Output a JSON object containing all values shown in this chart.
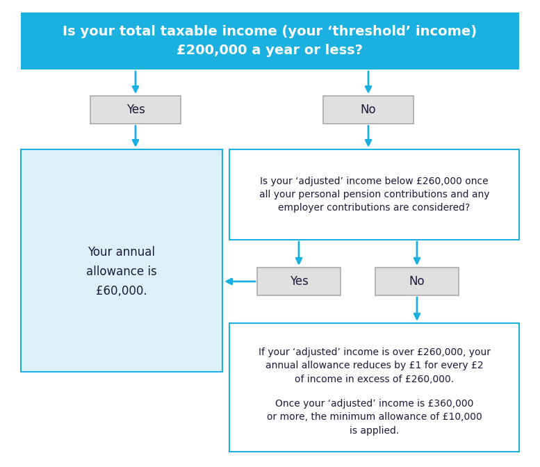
{
  "bg_color": "#ffffff",
  "header_bg": "#1ab0e0",
  "header_text": "Is your total taxable income (your ‘threshold’ income)\n£200,000 a year or less?",
  "header_text_color": "#ffffff",
  "yes_no_box_bg": "#e0e0e0",
  "yes_no_box_border": "#aaaaaa",
  "left_big_box_bg": "#ddf0f7",
  "left_big_box_border": "#1ab0e0",
  "right_box_border": "#1ab0e0",
  "right_box_bg": "#ffffff",
  "arrow_color": "#1ab0e0",
  "dark_text": "#1a1a3a",
  "yes_label": "Yes",
  "no_label": "No",
  "left_big_text": "Your annual\nallowance is\n£60,000.",
  "mid_question": "Is your ‘adjusted’ income below £260,000 once\nall your personal pension contributions and any\nemployer contributions are considered?",
  "bottom_text_line1": "If your ‘adjusted’ income is over £260,000, your\nannual allowance reduces by £1 for every £2\nof income in excess of £260,000.",
  "bottom_text_line2": "Once your ‘adjusted’ income is £360,000\nor more, the minimum allowance of £10,000\nis applied.",
  "figsize": [
    7.77,
    6.72
  ],
  "dpi": 100
}
